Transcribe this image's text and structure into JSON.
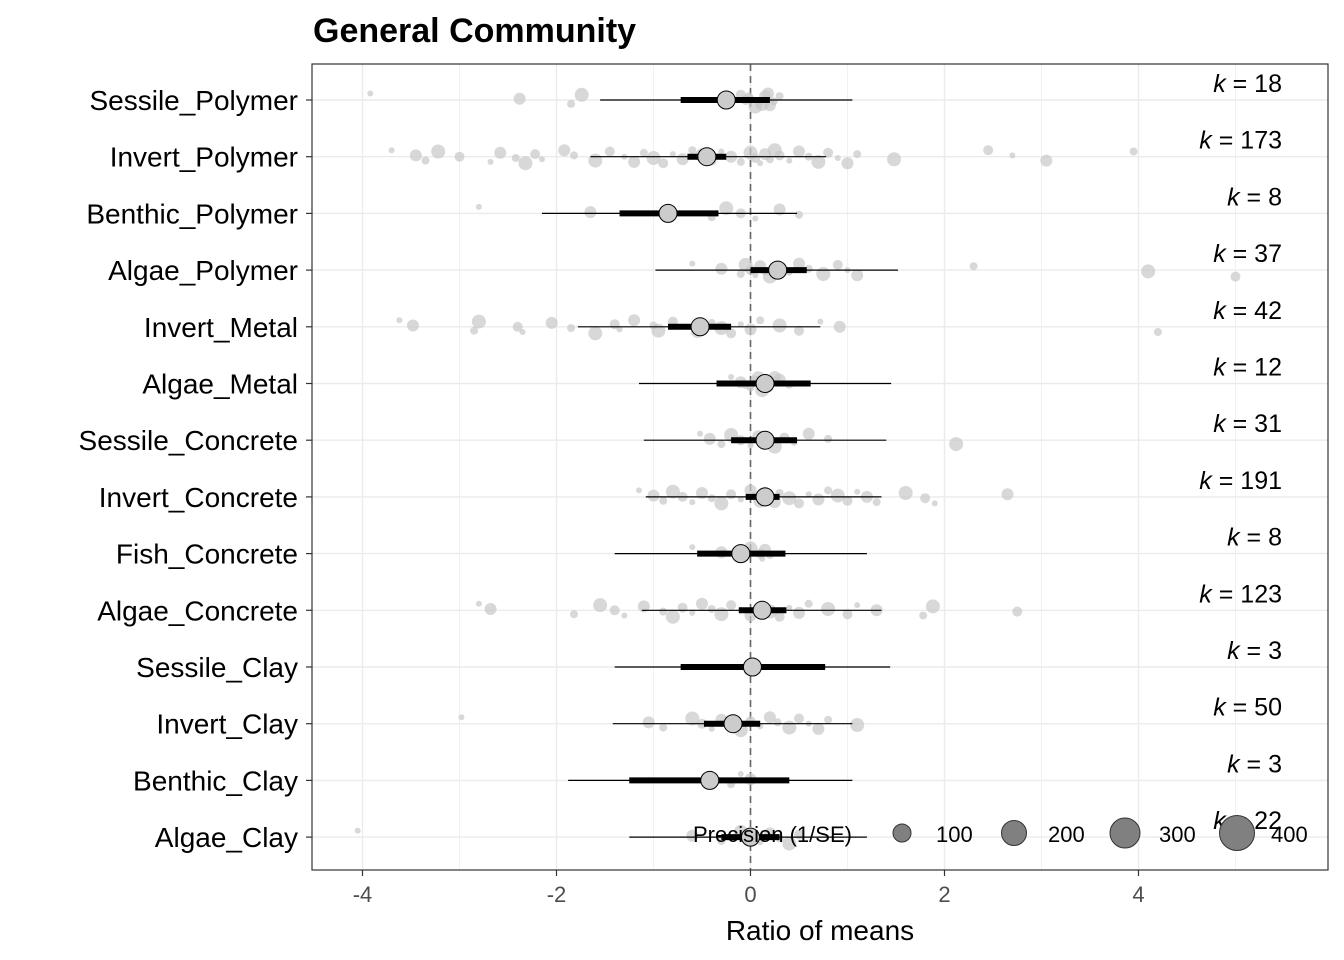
{
  "chart_data": {
    "type": "scatter",
    "title": "General Community",
    "xlabel": "Ratio of means",
    "ylabel": "",
    "xlim": [
      -4.5,
      5.8
    ],
    "xticks": [
      -4,
      -2,
      0,
      2,
      4
    ],
    "xtick_labels": [
      "-4",
      "-2",
      "0",
      "2",
      "4"
    ],
    "grid": true,
    "reference_line": 0,
    "categories": [
      {
        "name": "Sessile_Polymer",
        "k_symbol": "k",
        "k_text": " = 18",
        "estimate": -0.25,
        "ci": [
          -0.72,
          0.2
        ],
        "pi": [
          -1.55,
          1.05
        ],
        "points": [
          -3.92,
          -2.38,
          -1.85,
          -1.74,
          -0.05,
          0.08,
          0.15,
          0.24,
          0.05,
          -0.02,
          0.1,
          0.18,
          0.0,
          0.12,
          -0.1,
          0.02,
          0.2,
          0.3
        ]
      },
      {
        "name": "Invert_Polymer",
        "k_symbol": "k",
        "k_text": " = 173",
        "estimate": -0.45,
        "ci": [
          -0.65,
          -0.25
        ],
        "pi": [
          -1.65,
          0.78
        ],
        "points": [
          -3.7,
          -3.45,
          -3.35,
          -3.22,
          -3.0,
          -2.68,
          -2.58,
          -2.42,
          -2.32,
          -2.22,
          -2.15,
          -1.92,
          -1.82,
          -1.6,
          -1.45,
          -1.3,
          -1.2,
          -1.1,
          -1.0,
          -0.9,
          -0.8,
          -0.7,
          -0.6,
          -0.5,
          -0.4,
          -0.3,
          -0.2,
          -0.1,
          0.0,
          0.05,
          0.1,
          0.15,
          0.2,
          0.25,
          0.3,
          0.4,
          0.5,
          0.6,
          0.7,
          0.8,
          0.9,
          1.0,
          1.1,
          1.48,
          2.45,
          2.7,
          3.05,
          3.95
        ]
      },
      {
        "name": "Benthic_Polymer",
        "k_symbol": "k",
        "k_text": " = 8",
        "estimate": -0.85,
        "ci": [
          -1.35,
          -0.33
        ],
        "pi": [
          -2.15,
          0.48
        ],
        "points": [
          -2.8,
          -1.65,
          -0.4,
          -0.25,
          -0.1,
          0.05,
          0.3,
          0.5
        ]
      },
      {
        "name": "Algae_Polymer",
        "k_symbol": "k",
        "k_text": " = 37",
        "estimate": 0.28,
        "ci": [
          0.0,
          0.58
        ],
        "pi": [
          -0.98,
          1.52
        ],
        "points": [
          -0.6,
          -0.3,
          -0.1,
          -0.05,
          0.0,
          0.05,
          0.1,
          0.15,
          0.2,
          0.3,
          0.4,
          0.5,
          0.6,
          0.75,
          0.9,
          1.0,
          1.1,
          2.3,
          4.1,
          5.0
        ]
      },
      {
        "name": "Invert_Metal",
        "k_symbol": "k",
        "k_text": " = 42",
        "estimate": -0.52,
        "ci": [
          -0.85,
          -0.2
        ],
        "pi": [
          -1.78,
          0.72
        ],
        "points": [
          -3.62,
          -3.48,
          -2.85,
          -2.8,
          -2.4,
          -2.35,
          -2.05,
          -1.85,
          -1.6,
          -1.4,
          -1.35,
          -1.2,
          -1.0,
          -0.95,
          -0.8,
          -0.7,
          -0.55,
          -0.4,
          -0.3,
          -0.2,
          -0.1,
          0.0,
          0.1,
          0.3,
          0.5,
          0.72,
          0.92,
          4.2
        ]
      },
      {
        "name": "Algae_Metal",
        "k_symbol": "k",
        "k_text": " = 12",
        "estimate": 0.15,
        "ci": [
          -0.35,
          0.62
        ],
        "pi": [
          -1.15,
          1.45
        ],
        "points": [
          -0.2,
          -0.1,
          0.0,
          0.08,
          0.15,
          0.2,
          0.3,
          0.4,
          0.12,
          0.05,
          -0.05,
          0.25
        ]
      },
      {
        "name": "Sessile_Concrete",
        "k_symbol": "k",
        "k_text": " = 31",
        "estimate": 0.15,
        "ci": [
          -0.2,
          0.48
        ],
        "pi": [
          -1.1,
          1.4
        ],
        "points": [
          -0.52,
          -0.42,
          -0.3,
          -0.2,
          -0.1,
          0.0,
          0.08,
          0.15,
          0.25,
          0.35,
          0.45,
          0.6,
          0.8,
          2.12
        ]
      },
      {
        "name": "Invert_Concrete",
        "k_symbol": "k",
        "k_text": " = 191",
        "estimate": 0.15,
        "ci": [
          -0.05,
          0.3
        ],
        "pi": [
          -1.08,
          1.35
        ],
        "points": [
          -1.15,
          -1.0,
          -0.9,
          -0.8,
          -0.7,
          -0.6,
          -0.5,
          -0.4,
          -0.3,
          -0.2,
          -0.1,
          0.0,
          0.05,
          0.1,
          0.15,
          0.2,
          0.25,
          0.3,
          0.4,
          0.5,
          0.6,
          0.7,
          0.8,
          0.9,
          1.0,
          1.1,
          1.2,
          1.3,
          1.6,
          1.8,
          1.9,
          2.65
        ]
      },
      {
        "name": "Fish_Concrete",
        "k_symbol": "k",
        "k_text": " = 8",
        "estimate": -0.1,
        "ci": [
          -0.55,
          0.36
        ],
        "pi": [
          -1.4,
          1.2
        ],
        "points": [
          -0.6,
          -0.3,
          -0.1,
          0.0,
          0.1,
          0.12,
          0.15,
          0.2
        ]
      },
      {
        "name": "Algae_Concrete",
        "k_symbol": "k",
        "k_text": " = 123",
        "estimate": 0.12,
        "ci": [
          -0.12,
          0.37
        ],
        "pi": [
          -1.12,
          1.35
        ],
        "points": [
          -2.8,
          -2.68,
          -1.82,
          -1.55,
          -1.4,
          -1.3,
          -1.1,
          -0.9,
          -0.8,
          -0.7,
          -0.6,
          -0.5,
          -0.4,
          -0.3,
          -0.2,
          -0.1,
          0.0,
          0.1,
          0.2,
          0.3,
          0.4,
          0.5,
          0.6,
          0.8,
          1.0,
          1.1,
          1.3,
          1.78,
          1.88,
          2.75
        ]
      },
      {
        "name": "Sessile_Clay",
        "k_symbol": "k",
        "k_text": " = 3",
        "estimate": 0.02,
        "ci": [
          -0.72,
          0.77
        ],
        "pi": [
          -1.4,
          1.44
        ],
        "points": [
          0.0,
          0.05,
          -0.03
        ]
      },
      {
        "name": "Invert_Clay",
        "k_symbol": "k",
        "k_text": " = 50",
        "estimate": -0.18,
        "ci": [
          -0.48,
          0.1
        ],
        "pi": [
          -1.42,
          1.05
        ],
        "points": [
          -2.98,
          -1.05,
          -0.9,
          -0.6,
          -0.5,
          -0.4,
          -0.3,
          -0.2,
          -0.1,
          0.0,
          0.1,
          0.2,
          0.28,
          0.4,
          0.5,
          0.6,
          0.7,
          0.8,
          1.1
        ]
      },
      {
        "name": "Benthic_Clay",
        "k_symbol": "k",
        "k_text": " = 3",
        "estimate": -0.42,
        "ci": [
          -1.25,
          0.4
        ],
        "pi": [
          -1.88,
          1.05
        ],
        "points": [
          -0.1,
          0.0,
          -0.2
        ]
      },
      {
        "name": "Algae_Clay",
        "k_symbol": "k",
        "k_text": " = 22",
        "estimate": 0.0,
        "ci": [
          -0.3,
          0.3
        ],
        "pi": [
          -1.25,
          1.2
        ],
        "points": [
          -4.05,
          -0.6,
          -0.3,
          -0.1,
          0.0,
          0.1,
          0.2,
          0.3,
          0.4,
          0.5
        ]
      }
    ],
    "legend": {
      "title": "Precision (1/SE)",
      "placement": "bottom-right",
      "entries": [
        "100",
        "200",
        "300",
        "400"
      ]
    },
    "colors": {
      "points": "#c8c8c8",
      "estimate_fill": "#cccccc",
      "bar": "#000000",
      "reference_line": "#666666",
      "grid": "#ebebeb",
      "legend_marker": "#808080"
    }
  }
}
